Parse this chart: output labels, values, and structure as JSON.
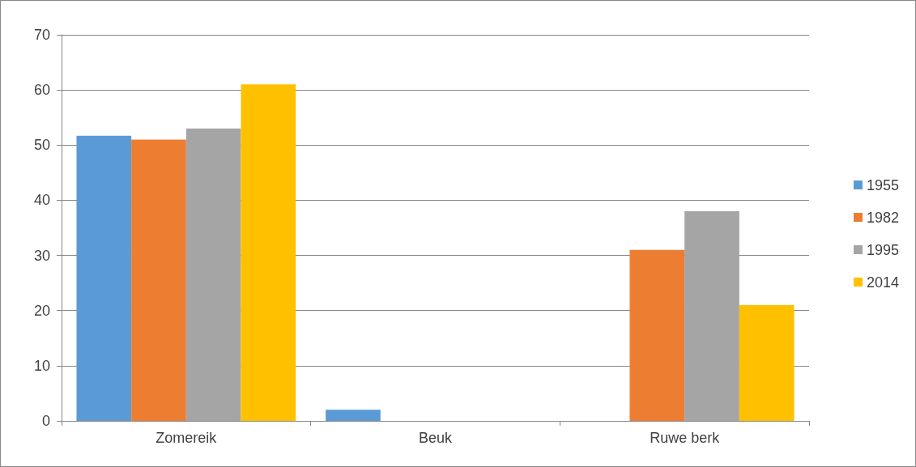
{
  "chart_data": {
    "type": "bar",
    "categories": [
      "Zomereik",
      "Beuk",
      "Ruwe berk"
    ],
    "series": [
      {
        "name": "1955",
        "color": "#5b9bd5",
        "values": [
          51.7,
          2,
          0
        ]
      },
      {
        "name": "1982",
        "color": "#ed7d31",
        "values": [
          51,
          0,
          31
        ]
      },
      {
        "name": "1995",
        "color": "#a5a5a5",
        "values": [
          53,
          0,
          38
        ]
      },
      {
        "name": "2014",
        "color": "#ffc000",
        "values": [
          61,
          0,
          21
        ]
      }
    ],
    "ylim": [
      0,
      70
    ],
    "yticks": [
      0,
      10,
      20,
      30,
      40,
      50,
      60,
      70
    ],
    "grid": "y",
    "legend": "right"
  }
}
